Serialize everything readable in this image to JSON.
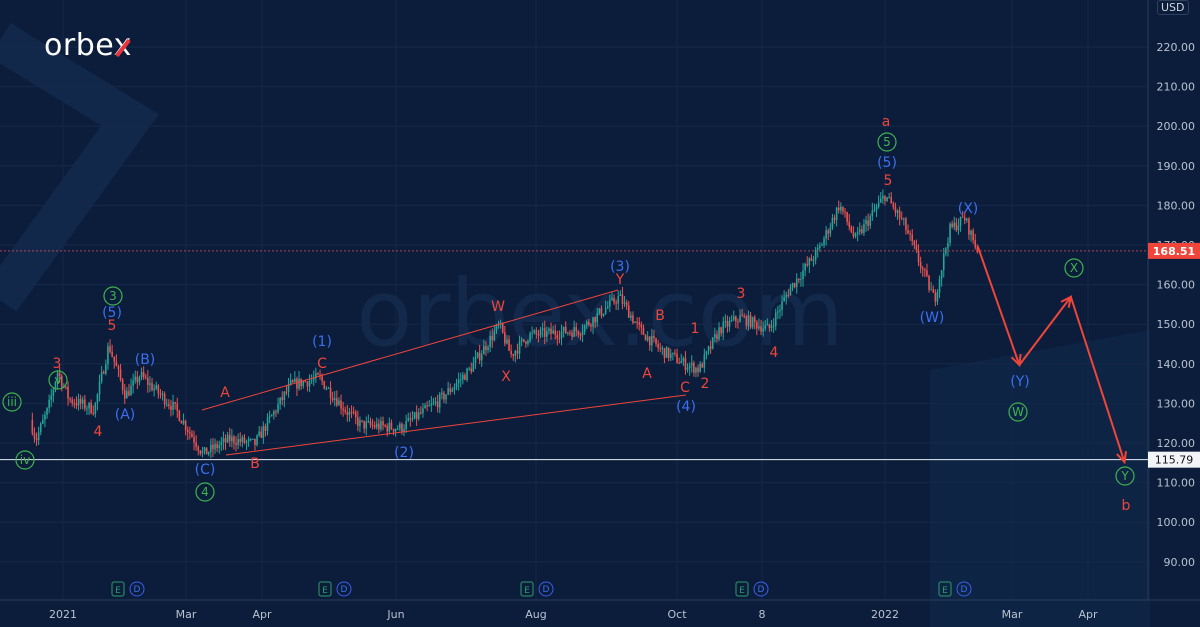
{
  "brand": {
    "logo": "orbex",
    "watermark": "orbex.com"
  },
  "currency_label": "USD",
  "colors": {
    "background": "#0b1d3a",
    "up": "#26a69a",
    "down": "#ef5350",
    "wave_red": "#f0453a",
    "wave_blue": "#3b6ff2",
    "wave_green": "#3fb34f",
    "support": "#e8edf3"
  },
  "chart_data": {
    "type": "candlestick",
    "title": "",
    "y_axis": {
      "ticks": [
        "220.00",
        "210.00",
        "200.00",
        "190.00",
        "180.00",
        "170.00",
        "160.00",
        "150.00",
        "140.00",
        "130.00",
        "120.00",
        "110.00",
        "100.00",
        "90.00"
      ],
      "range": [
        85,
        225
      ],
      "side": "right"
    },
    "x_axis": {
      "ticks": [
        "2021",
        "Mar",
        "Apr",
        "Jun",
        "Aug",
        "Oct",
        "8",
        "2022",
        "Mar",
        "Apr"
      ]
    },
    "grid": true,
    "price_path": [
      [
        "2020-12-08",
        125.8
      ],
      [
        "2020-12-12",
        120.8
      ],
      [
        "2020-12-21",
        128.5
      ],
      [
        "2020-12-28",
        138.0
      ],
      [
        "2021-01-04",
        131.0
      ],
      [
        "2021-01-16",
        128.5
      ],
      [
        "2021-01-23",
        144.7
      ],
      [
        "2021-01-31",
        132.0
      ],
      [
        "2021-02-07",
        137.1
      ],
      [
        "2021-02-24",
        128.5
      ],
      [
        "2021-03-08",
        117.2
      ],
      [
        "2021-03-19",
        121.0
      ],
      [
        "2021-03-29",
        119.7
      ],
      [
        "2021-04-14",
        134.6
      ],
      [
        "2021-04-27",
        136.4
      ],
      [
        "2021-05-09",
        128.3
      ],
      [
        "2021-05-16",
        124.6
      ],
      [
        "2021-06-03",
        123.8
      ],
      [
        "2021-06-20",
        130.8
      ],
      [
        "2021-07-03",
        138.4
      ],
      [
        "2021-07-16",
        149.7
      ],
      [
        "2021-07-21",
        142.2
      ],
      [
        "2021-07-29",
        147.2
      ],
      [
        "2021-08-20",
        148.5
      ],
      [
        "2021-09-06",
        156.9
      ],
      [
        "2021-09-15",
        148.5
      ],
      [
        "2021-09-24",
        143.5
      ],
      [
        "2021-10-05",
        139.8
      ],
      [
        "2021-10-11",
        138.6
      ],
      [
        "2021-10-20",
        148.7
      ],
      [
        "2021-10-29",
        151.7
      ],
      [
        "2021-11-11",
        148.7
      ],
      [
        "2021-11-20",
        158.8
      ],
      [
        "2021-12-03",
        168.8
      ],
      [
        "2021-12-12",
        180.2
      ],
      [
        "2021-12-19",
        171.3
      ],
      [
        "2022-01-01",
        182.6
      ],
      [
        "2022-01-10",
        175.1
      ],
      [
        "2022-01-24",
        156.1
      ],
      [
        "2022-01-31",
        173.8
      ],
      [
        "2022-02-07",
        176.8
      ],
      [
        "2022-02-13",
        168.51
      ]
    ],
    "last_price": "168.51",
    "support_level": "115.79",
    "projection": [
      [
        "2022-02-13",
        169.8
      ],
      [
        "2022-03-04",
        139.7
      ],
      [
        "2022-03-25",
        156.9
      ],
      [
        "2022-04-16",
        115.2
      ]
    ],
    "earnings_markers": [
      {
        "e": "E",
        "d": "D"
      },
      {
        "e": "E",
        "d": "D"
      },
      {
        "e": "E",
        "d": "D"
      },
      {
        "e": "E",
        "d": "D"
      },
      {
        "e": "E",
        "d": "D"
      }
    ],
    "annotations": [
      {
        "text": "iii",
        "color": "green",
        "circled": true
      },
      {
        "text": "iv",
        "color": "green",
        "circled": true
      },
      {
        "text": "v",
        "color": "green",
        "circled": true
      },
      {
        "text": "3",
        "color": "green",
        "circled": true
      },
      {
        "text": "4",
        "color": "green",
        "circled": true
      },
      {
        "text": "5",
        "color": "green",
        "circled": true
      },
      {
        "text": "X",
        "color": "green",
        "circled": true
      },
      {
        "text": "W",
        "color": "green",
        "circled": true
      },
      {
        "text": "Y",
        "color": "green",
        "circled": true
      },
      {
        "text": "(5)",
        "color": "blue"
      },
      {
        "text": "(B)",
        "color": "blue"
      },
      {
        "text": "(A)",
        "color": "blue"
      },
      {
        "text": "(C)",
        "color": "blue"
      },
      {
        "text": "(1)",
        "color": "blue"
      },
      {
        "text": "(2)",
        "color": "blue"
      },
      {
        "text": "(3)",
        "color": "blue"
      },
      {
        "text": "(4)",
        "color": "blue"
      },
      {
        "text": "(5)",
        "color": "blue"
      },
      {
        "text": "(X)",
        "color": "blue"
      },
      {
        "text": "(W)",
        "color": "blue"
      },
      {
        "text": "(Y)",
        "color": "blue"
      },
      {
        "text": "3",
        "color": "red"
      },
      {
        "text": "5",
        "color": "red"
      },
      {
        "text": "4",
        "color": "red"
      },
      {
        "text": "A",
        "color": "red"
      },
      {
        "text": "B",
        "color": "red"
      },
      {
        "text": "C",
        "color": "red"
      },
      {
        "text": "W",
        "color": "red"
      },
      {
        "text": "X",
        "color": "red"
      },
      {
        "text": "Y",
        "color": "red"
      },
      {
        "text": "B",
        "color": "red"
      },
      {
        "text": "A",
        "color": "red"
      },
      {
        "text": "C",
        "color": "red"
      },
      {
        "text": "1",
        "color": "red"
      },
      {
        "text": "2",
        "color": "red"
      },
      {
        "text": "3",
        "color": "red"
      },
      {
        "text": "4",
        "color": "red"
      },
      {
        "text": "5",
        "color": "red"
      },
      {
        "text": "a",
        "color": "red"
      },
      {
        "text": "b",
        "color": "red"
      }
    ]
  }
}
